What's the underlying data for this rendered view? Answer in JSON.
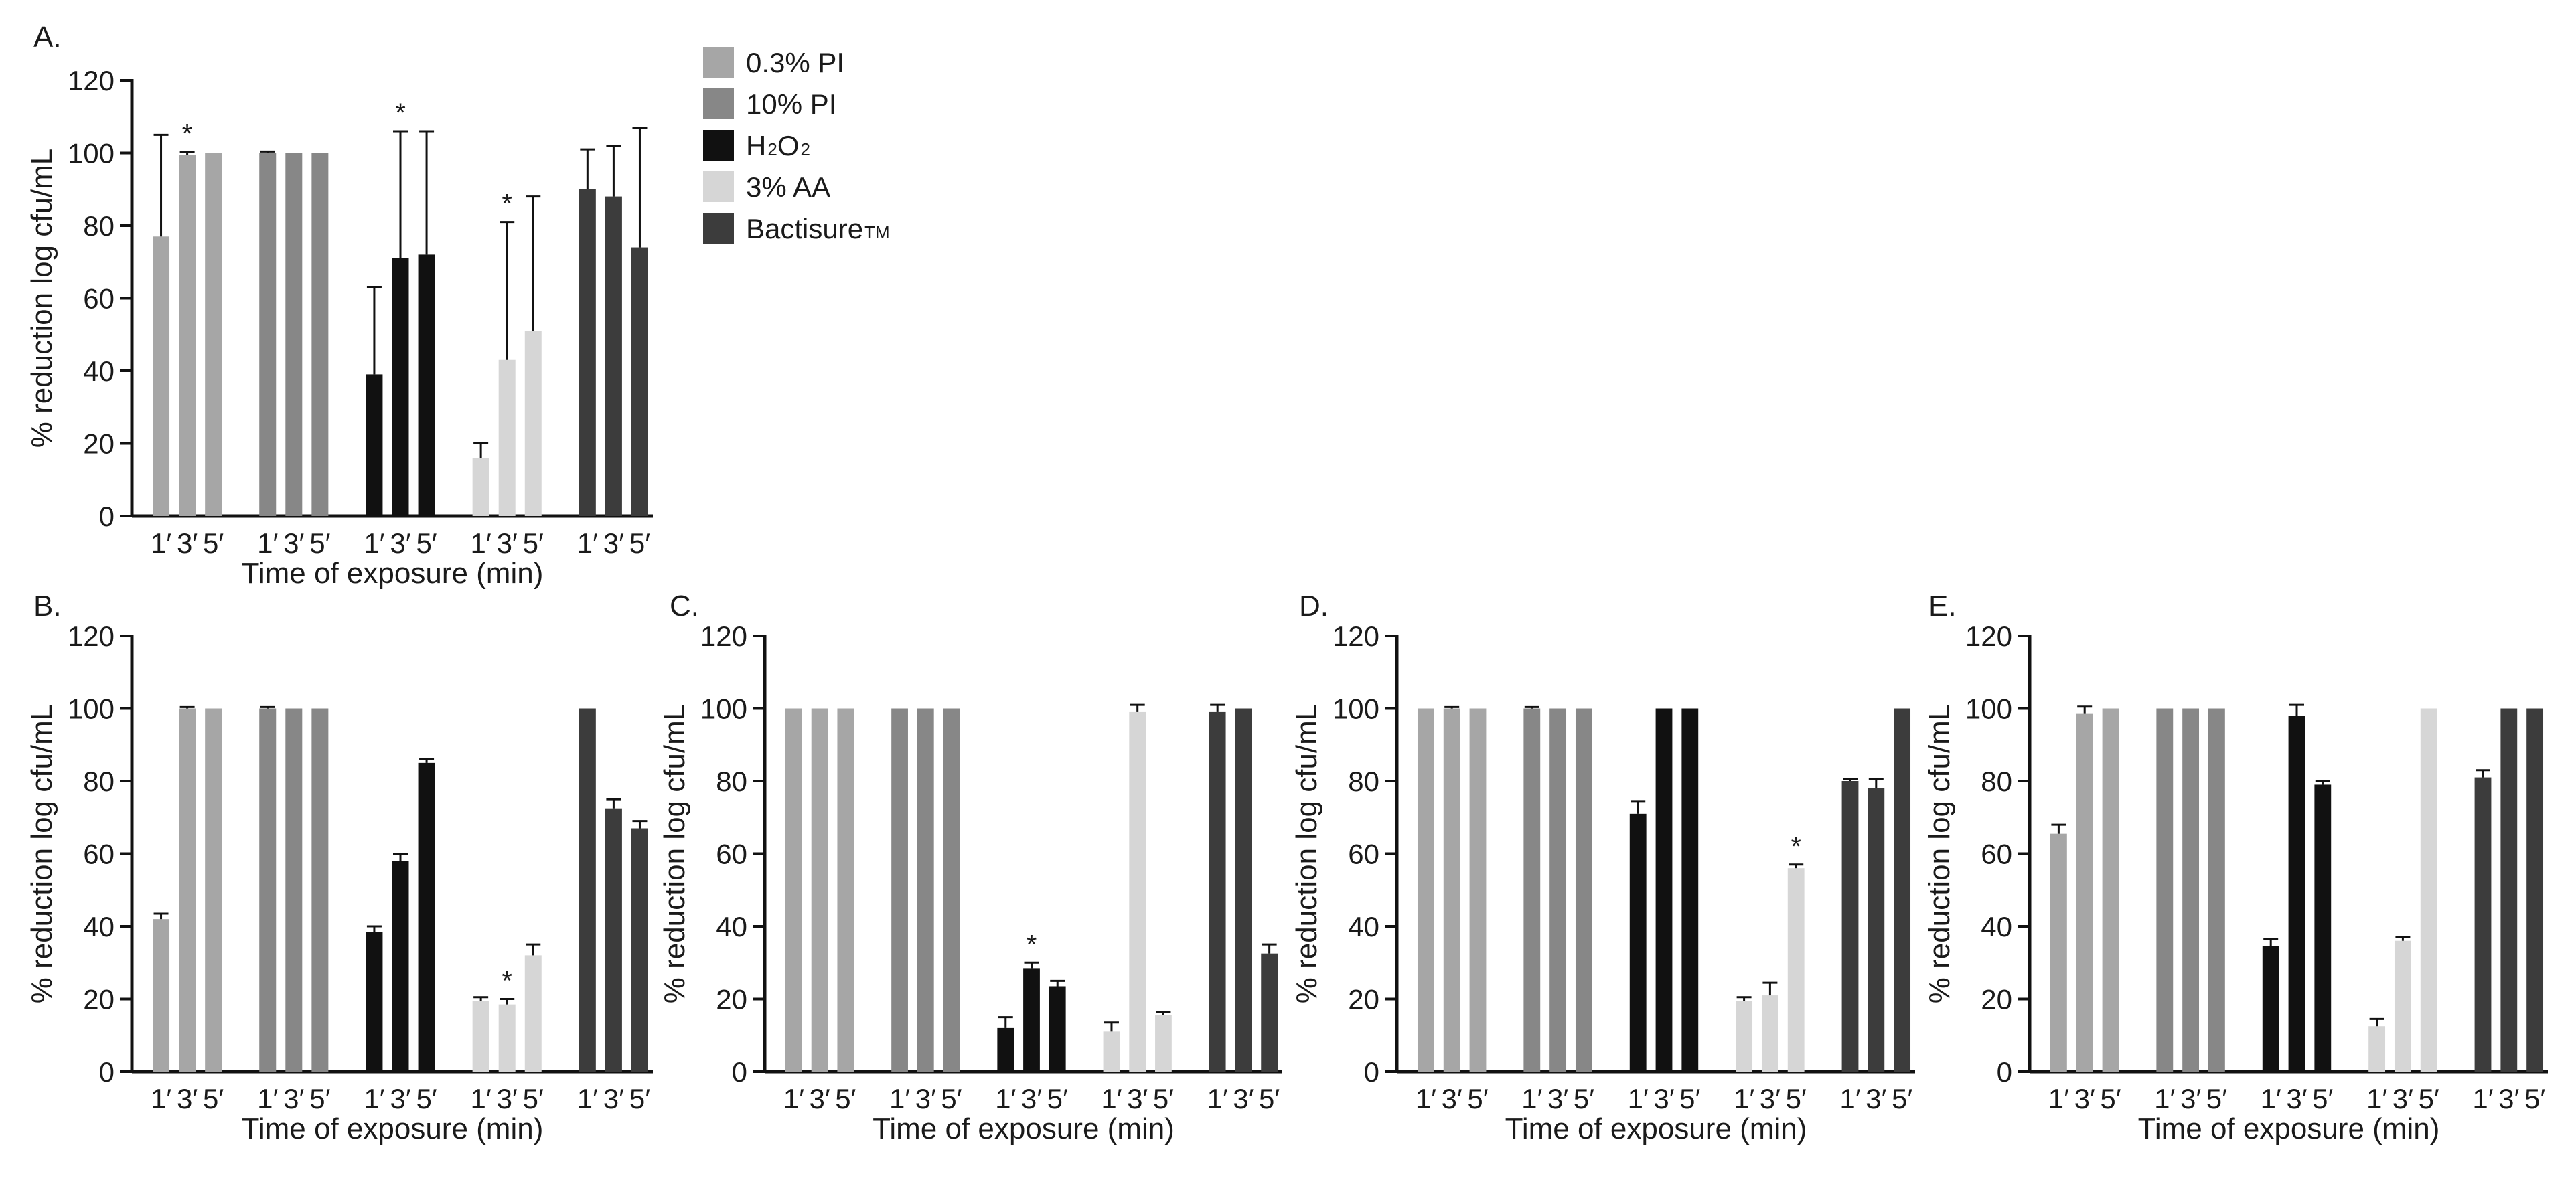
{
  "legend": [
    {
      "series_key": "pi03",
      "label": "0.3% PI",
      "sub": "",
      "color": "#a6a6a6"
    },
    {
      "series_key": "pi10",
      "label": "10% PI",
      "sub": "",
      "color": "#878787"
    },
    {
      "series_key": "h2o2",
      "label": "H",
      "sub": "2",
      "label_tail": "O",
      "sub_tail": "2",
      "color": "#111111"
    },
    {
      "series_key": "aa3",
      "label": "3% AA",
      "sub": "",
      "color": "#d6d6d6"
    },
    {
      "series_key": "bact",
      "label": "Bactisure",
      "sub": "TM",
      "color": "#3c3c3c"
    }
  ],
  "chart_data": [
    {
      "panel": "A.",
      "type": "bar",
      "ylabel": "% reduction log cfu/mL",
      "xlabel": "Time of exposure (min)",
      "ylim": [
        0,
        120
      ],
      "yticks": [
        0,
        20,
        40,
        60,
        80,
        100,
        120
      ],
      "categories": [
        "1′",
        "3′",
        "5′"
      ],
      "series": [
        {
          "name": "0.3% PI",
          "key": "pi03",
          "values": [
            77,
            99.5,
            100
          ],
          "errors": [
            28,
            0.8,
            0
          ],
          "star": [
            false,
            true,
            false
          ]
        },
        {
          "name": "10% PI",
          "key": "pi10",
          "values": [
            100,
            100,
            100
          ],
          "errors": [
            0.4,
            0,
            0
          ],
          "star": [
            false,
            false,
            false
          ]
        },
        {
          "name": "H2O2",
          "key": "h2o2",
          "values": [
            39,
            71,
            72
          ],
          "errors": [
            24,
            35,
            34
          ],
          "star": [
            false,
            true,
            false
          ]
        },
        {
          "name": "3% AA",
          "key": "aa3",
          "values": [
            16,
            43,
            51
          ],
          "errors": [
            4,
            38,
            37
          ],
          "star": [
            false,
            true,
            false
          ]
        },
        {
          "name": "Bactisure TM",
          "key": "bact",
          "values": [
            90,
            88,
            74
          ],
          "errors": [
            11,
            14,
            33
          ],
          "star": [
            false,
            false,
            false
          ]
        }
      ]
    },
    {
      "panel": "B.",
      "type": "bar",
      "ylabel": "% reduction log cfu/mL",
      "xlabel": "Time of exposure (min)",
      "ylim": [
        0,
        120
      ],
      "yticks": [
        0,
        20,
        40,
        60,
        80,
        100,
        120
      ],
      "categories": [
        "1′",
        "3′",
        "5′"
      ],
      "series": [
        {
          "name": "0.3% PI",
          "key": "pi03",
          "values": [
            42,
            100,
            100
          ],
          "errors": [
            1.5,
            0.4,
            0
          ],
          "star": [
            false,
            false,
            false
          ]
        },
        {
          "name": "10% PI",
          "key": "pi10",
          "values": [
            100,
            100,
            100
          ],
          "errors": [
            0.4,
            0,
            0
          ],
          "star": [
            false,
            false,
            false
          ]
        },
        {
          "name": "H2O2",
          "key": "h2o2",
          "values": [
            38.5,
            58,
            85
          ],
          "errors": [
            1.5,
            2,
            1
          ],
          "star": [
            false,
            false,
            false
          ]
        },
        {
          "name": "3% AA",
          "key": "aa3",
          "values": [
            19.5,
            18.5,
            32
          ],
          "errors": [
            1,
            1.5,
            3
          ],
          "star": [
            false,
            true,
            false
          ]
        },
        {
          "name": "Bactisure TM",
          "key": "bact",
          "values": [
            100,
            72.5,
            67
          ],
          "errors": [
            0,
            2.5,
            2
          ],
          "star": [
            false,
            false,
            false
          ]
        }
      ]
    },
    {
      "panel": "C.",
      "type": "bar",
      "ylabel": "% reduction log cfu/mL",
      "xlabel": "Time of exposure (min)",
      "ylim": [
        0,
        120
      ],
      "yticks": [
        0,
        20,
        40,
        60,
        80,
        100,
        120
      ],
      "categories": [
        "1′",
        "3′",
        "5′"
      ],
      "series": [
        {
          "name": "0.3% PI",
          "key": "pi03",
          "values": [
            100,
            100,
            100
          ],
          "errors": [
            0,
            0,
            0
          ],
          "star": [
            false,
            false,
            false
          ]
        },
        {
          "name": "10% PI",
          "key": "pi10",
          "values": [
            100,
            100,
            100
          ],
          "errors": [
            0,
            0,
            0
          ],
          "star": [
            false,
            false,
            false
          ]
        },
        {
          "name": "H2O2",
          "key": "h2o2",
          "values": [
            12,
            28.5,
            23.5
          ],
          "errors": [
            3,
            1.5,
            1.5
          ],
          "star": [
            false,
            true,
            false
          ]
        },
        {
          "name": "3% AA",
          "key": "aa3",
          "values": [
            11,
            99,
            15.5
          ],
          "errors": [
            2.5,
            2,
            1
          ],
          "star": [
            false,
            false,
            false
          ]
        },
        {
          "name": "Bactisure TM",
          "key": "bact",
          "values": [
            99,
            100,
            32.5
          ],
          "errors": [
            2,
            0,
            2.5
          ],
          "star": [
            false,
            false,
            false
          ]
        }
      ]
    },
    {
      "panel": "D.",
      "type": "bar",
      "ylabel": "% reduction log cfu/mL",
      "xlabel": "Time of exposure (min)",
      "ylim": [
        0,
        120
      ],
      "yticks": [
        0,
        20,
        40,
        60,
        80,
        100,
        120
      ],
      "categories": [
        "1′",
        "3′",
        "5′"
      ],
      "series": [
        {
          "name": "0.3% PI",
          "key": "pi03",
          "values": [
            100,
            100,
            100
          ],
          "errors": [
            0,
            0.4,
            0
          ],
          "star": [
            false,
            false,
            false
          ]
        },
        {
          "name": "10% PI",
          "key": "pi10",
          "values": [
            100,
            100,
            100
          ],
          "errors": [
            0.4,
            0,
            0
          ],
          "star": [
            false,
            false,
            false
          ]
        },
        {
          "name": "H2O2",
          "key": "h2o2",
          "values": [
            71,
            100,
            100
          ],
          "errors": [
            3.5,
            0,
            0
          ],
          "star": [
            false,
            false,
            false
          ]
        },
        {
          "name": "3% AA",
          "key": "aa3",
          "values": [
            19.5,
            21,
            56
          ],
          "errors": [
            1,
            3.5,
            1
          ],
          "star": [
            false,
            false,
            true
          ]
        },
        {
          "name": "Bactisure TM",
          "key": "bact",
          "values": [
            80,
            78,
            100
          ],
          "errors": [
            0.5,
            2.5,
            0
          ],
          "star": [
            false,
            false,
            false
          ]
        }
      ]
    },
    {
      "panel": "E.",
      "type": "bar",
      "ylabel": "% reduction log cfu/mL",
      "xlabel": "Time of exposure (min)",
      "ylim": [
        0,
        120
      ],
      "yticks": [
        0,
        20,
        40,
        60,
        80,
        100,
        120
      ],
      "categories": [
        "1′",
        "3′",
        "5′"
      ],
      "series": [
        {
          "name": "0.3% PI",
          "key": "pi03",
          "values": [
            65.5,
            98.5,
            100
          ],
          "errors": [
            2.5,
            2,
            0
          ],
          "star": [
            false,
            false,
            false
          ]
        },
        {
          "name": "10% PI",
          "key": "pi10",
          "values": [
            100,
            100,
            100
          ],
          "errors": [
            0,
            0,
            0
          ],
          "star": [
            false,
            false,
            false
          ]
        },
        {
          "name": "H2O2",
          "key": "h2o2",
          "values": [
            34.5,
            98,
            79
          ],
          "errors": [
            2,
            3,
            1
          ],
          "star": [
            false,
            false,
            false
          ]
        },
        {
          "name": "3% AA",
          "key": "aa3",
          "values": [
            12.5,
            36,
            100
          ],
          "errors": [
            2,
            1,
            0
          ],
          "star": [
            false,
            false,
            false
          ]
        },
        {
          "name": "Bactisure TM",
          "key": "bact",
          "values": [
            81,
            100,
            100
          ],
          "errors": [
            2,
            0,
            0
          ],
          "star": [
            false,
            false,
            false
          ]
        }
      ]
    }
  ]
}
